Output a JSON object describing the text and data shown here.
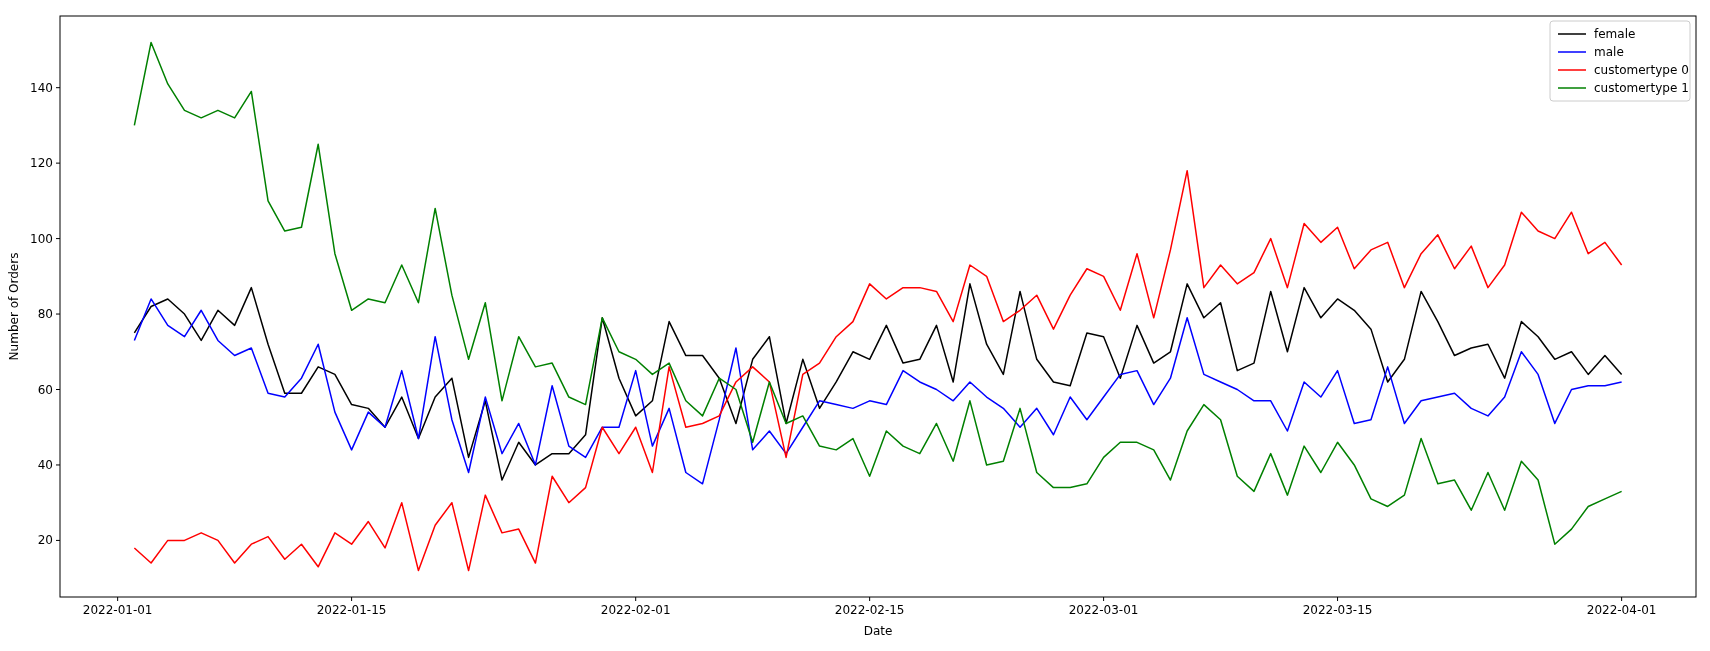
{
  "chart_data": {
    "type": "line",
    "xlabel": "Date",
    "ylabel": "Number of Orders",
    "x": [
      "2022-01-02",
      "2022-01-03",
      "2022-01-04",
      "2022-01-05",
      "2022-01-06",
      "2022-01-07",
      "2022-01-08",
      "2022-01-09",
      "2022-01-10",
      "2022-01-11",
      "2022-01-12",
      "2022-01-13",
      "2022-01-14",
      "2022-01-15",
      "2022-01-16",
      "2022-01-17",
      "2022-01-18",
      "2022-01-19",
      "2022-01-20",
      "2022-01-21",
      "2022-01-22",
      "2022-01-23",
      "2022-01-24",
      "2022-01-25",
      "2022-01-26",
      "2022-01-27",
      "2022-01-28",
      "2022-01-29",
      "2022-01-30",
      "2022-01-31",
      "2022-02-01",
      "2022-02-02",
      "2022-02-03",
      "2022-02-04",
      "2022-02-05",
      "2022-02-06",
      "2022-02-07",
      "2022-02-08",
      "2022-02-09",
      "2022-02-10",
      "2022-02-11",
      "2022-02-12",
      "2022-02-13",
      "2022-02-14",
      "2022-02-15",
      "2022-02-16",
      "2022-02-17",
      "2022-02-18",
      "2022-02-19",
      "2022-02-20",
      "2022-02-21",
      "2022-02-22",
      "2022-02-23",
      "2022-02-24",
      "2022-02-25",
      "2022-02-26",
      "2022-02-27",
      "2022-02-28",
      "2022-03-01",
      "2022-03-02",
      "2022-03-03",
      "2022-03-04",
      "2022-03-05",
      "2022-03-06",
      "2022-03-07",
      "2022-03-08",
      "2022-03-09",
      "2022-03-10",
      "2022-03-11",
      "2022-03-12",
      "2022-03-13",
      "2022-03-14",
      "2022-03-15",
      "2022-03-16",
      "2022-03-17",
      "2022-03-18",
      "2022-03-19",
      "2022-03-20",
      "2022-03-21",
      "2022-03-22",
      "2022-03-23",
      "2022-03-24",
      "2022-03-25",
      "2022-03-26",
      "2022-03-27",
      "2022-03-28",
      "2022-03-29",
      "2022-03-30",
      "2022-03-31",
      "2022-04-01"
    ],
    "series": [
      {
        "name": "female",
        "color": "#000000",
        "values": [
          75,
          82,
          84,
          80,
          73,
          81,
          77,
          87,
          72,
          59,
          59,
          66,
          64,
          56,
          55,
          50,
          58,
          47,
          58,
          63,
          42,
          57,
          36,
          46,
          40,
          43,
          43,
          48,
          79,
          63,
          53,
          57,
          78,
          69,
          69,
          63,
          51,
          68,
          74,
          51,
          68,
          55,
          62,
          70,
          68,
          77,
          67,
          68,
          77,
          62,
          88,
          72,
          64,
          86,
          68,
          62,
          61,
          75,
          74,
          63,
          77,
          67,
          70,
          88,
          79,
          83,
          65,
          67,
          86,
          70,
          87,
          79,
          84,
          81,
          76,
          62,
          68,
          86,
          78,
          69,
          71,
          72,
          63,
          78,
          74,
          68,
          70,
          64,
          69,
          64
        ]
      },
      {
        "name": "male",
        "color": "#0000ff",
        "values": [
          73,
          84,
          77,
          74,
          81,
          73,
          69,
          71,
          59,
          58,
          63,
          72,
          54,
          44,
          54,
          50,
          65,
          47,
          74,
          52,
          38,
          58,
          43,
          51,
          40,
          61,
          45,
          42,
          50,
          50,
          65,
          45,
          55,
          38,
          35,
          52,
          71,
          44,
          49,
          43,
          50,
          57,
          56,
          55,
          57,
          56,
          65,
          62,
          60,
          57,
          62,
          58,
          55,
          50,
          55,
          48,
          58,
          52,
          58,
          64,
          65,
          56,
          63,
          79,
          64,
          62,
          60,
          57,
          57,
          49,
          62,
          58,
          65,
          51,
          52,
          66,
          51,
          57,
          58,
          59,
          55,
          53,
          58,
          70,
          64,
          51,
          60,
          61,
          61,
          62
        ]
      },
      {
        "name": "customertype 0",
        "color": "#ff0000",
        "values": [
          18,
          14,
          20,
          20,
          22,
          20,
          14,
          19,
          21,
          15,
          19,
          13,
          22,
          19,
          25,
          18,
          30,
          12,
          24,
          30,
          12,
          32,
          22,
          23,
          14,
          37,
          30,
          34,
          50,
          43,
          50,
          38,
          66,
          50,
          51,
          53,
          62,
          66,
          62,
          42,
          64,
          67,
          74,
          78,
          88,
          84,
          87,
          87,
          86,
          78,
          93,
          90,
          78,
          81,
          85,
          76,
          85,
          92,
          90,
          81,
          96,
          79,
          97,
          118,
          87,
          93,
          88,
          91,
          100,
          87,
          104,
          99,
          103,
          92,
          97,
          99,
          87,
          96,
          101,
          92,
          98,
          87,
          93,
          107,
          102,
          100,
          107,
          96,
          99,
          93
        ]
      },
      {
        "name": "customertype 1",
        "color": "#008000",
        "values": [
          130,
          152,
          141,
          134,
          132,
          134,
          132,
          139,
          110,
          102,
          103,
          125,
          96,
          81,
          84,
          83,
          93,
          83,
          108,
          85,
          68,
          83,
          57,
          74,
          66,
          67,
          58,
          56,
          79,
          70,
          68,
          64,
          67,
          57,
          53,
          63,
          60,
          46,
          62,
          51,
          53,
          45,
          44,
          47,
          37,
          49,
          45,
          43,
          51,
          41,
          57,
          40,
          41,
          55,
          38,
          34,
          34,
          35,
          42,
          46,
          46,
          44,
          36,
          49,
          56,
          52,
          37,
          33,
          43,
          32,
          45,
          38,
          46,
          40,
          31,
          29,
          32,
          47,
          35,
          36,
          28,
          38,
          28,
          41,
          36,
          19,
          23,
          29,
          31,
          33
        ]
      }
    ],
    "xlim": [
      "2021-12-28T13:12",
      "2022-04-05T10:48"
    ],
    "xticks": [
      "2022-01-01",
      "2022-01-15",
      "2022-02-01",
      "2022-02-15",
      "2022-03-01",
      "2022-03-15",
      "2022-04-01"
    ],
    "ylim": [
      5,
      159
    ],
    "yticks": [
      20,
      40,
      60,
      80,
      100,
      120,
      140
    ],
    "grid": false,
    "legend": "top right",
    "line_style": "solid",
    "marker": "none"
  }
}
